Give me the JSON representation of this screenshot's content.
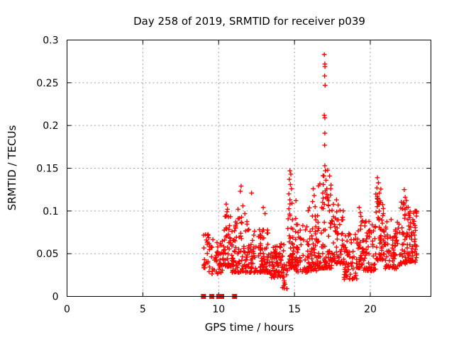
{
  "chart_data": {
    "type": "scatter",
    "title": "Day 258 of 2019, SRMTID for receiver p039",
    "xlabel": "GPS time / hours",
    "ylabel": "SRMTID / TECUs",
    "xlim": [
      0,
      24
    ],
    "ylim": [
      0,
      0.3
    ],
    "xticks": {
      "values": [
        0,
        5,
        10,
        15,
        20
      ],
      "labels": [
        "0",
        "5",
        "10",
        "15",
        "20"
      ]
    },
    "yticks": {
      "values": [
        0,
        0.05,
        0.1,
        0.15,
        0.2,
        0.25,
        0.3
      ],
      "labels": [
        "0",
        "0.05",
        "0.1",
        "0.15",
        "0.2",
        "0.25",
        "0.3"
      ]
    },
    "grid": true,
    "grid_style": "dashed",
    "grid_color": "#9e9e9e",
    "axis_color": "#000000",
    "marker": "plus",
    "marker_color": "#ff0000",
    "legend": "none",
    "seed": 20190258,
    "series": [
      {
        "name": "SRMTID",
        "color": "#ff0000",
        "clusters": [
          {
            "x0": 9.0,
            "x1": 9.35,
            "n": 22,
            "ymin": 0.033,
            "ymax": 0.076,
            "bias": 1.0
          },
          {
            "x0": 9.35,
            "x1": 10.25,
            "n": 45,
            "ymin": 0.026,
            "ymax": 0.068,
            "bias": 1.4
          },
          {
            "x0": 10.25,
            "x1": 10.9,
            "n": 60,
            "ymin": 0.035,
            "ymax": 0.105,
            "bias": 1.8
          },
          {
            "x0": 10.9,
            "x1": 11.9,
            "n": 80,
            "ymin": 0.028,
            "ymax": 0.098,
            "bias": 2.0
          },
          {
            "x0": 11.9,
            "x1": 13.35,
            "n": 110,
            "ymin": 0.028,
            "ymax": 0.08,
            "bias": 1.8
          },
          {
            "x0": 13.35,
            "x1": 14.3,
            "n": 75,
            "ymin": 0.022,
            "ymax": 0.062,
            "bias": 1.3
          },
          {
            "x0": 14.2,
            "x1": 14.55,
            "n": 15,
            "ymin": 0.008,
            "ymax": 0.04,
            "bias": 1.0
          },
          {
            "x0": 14.55,
            "x1": 15.1,
            "n": 55,
            "ymin": 0.033,
            "ymax": 0.118,
            "bias": 2.1
          },
          {
            "x0": 15.1,
            "x1": 15.85,
            "n": 45,
            "ymin": 0.028,
            "ymax": 0.085,
            "bias": 1.7
          },
          {
            "x0": 15.85,
            "x1": 16.55,
            "n": 65,
            "ymin": 0.03,
            "ymax": 0.108,
            "bias": 2.0
          },
          {
            "x0": 16.55,
            "x1": 17.45,
            "n": 80,
            "ymin": 0.033,
            "ymax": 0.15,
            "bias": 2.3
          },
          {
            "x0": 17.45,
            "x1": 18.25,
            "n": 58,
            "ymin": 0.038,
            "ymax": 0.11,
            "bias": 1.8
          },
          {
            "x0": 18.25,
            "x1": 19.15,
            "n": 62,
            "ymin": 0.02,
            "ymax": 0.075,
            "bias": 1.5
          },
          {
            "x0": 19.15,
            "x1": 19.5,
            "n": 30,
            "ymin": 0.033,
            "ymax": 0.098,
            "bias": 1.8
          },
          {
            "x0": 19.5,
            "x1": 20.35,
            "n": 62,
            "ymin": 0.03,
            "ymax": 0.088,
            "bias": 1.6
          },
          {
            "x0": 20.35,
            "x1": 20.95,
            "n": 58,
            "ymin": 0.042,
            "ymax": 0.126,
            "bias": 1.9
          },
          {
            "x0": 20.95,
            "x1": 21.95,
            "n": 70,
            "ymin": 0.032,
            "ymax": 0.092,
            "bias": 1.6
          },
          {
            "x0": 21.95,
            "x1": 22.5,
            "n": 50,
            "ymin": 0.038,
            "ymax": 0.116,
            "bias": 1.8
          },
          {
            "x0": 22.5,
            "x1": 23.1,
            "n": 58,
            "ymin": 0.04,
            "ymax": 0.102,
            "bias": 1.5
          }
        ],
        "outliers": [
          [
            16.97,
            0.283
          ],
          [
            17.0,
            0.272
          ],
          [
            17.01,
            0.269
          ],
          [
            16.99,
            0.258
          ],
          [
            17.02,
            0.247
          ],
          [
            16.97,
            0.212
          ],
          [
            17.0,
            0.209
          ],
          [
            17.0,
            0.191
          ],
          [
            16.99,
            0.177
          ],
          [
            17.0,
            0.153
          ],
          [
            17.04,
            0.147
          ],
          [
            16.94,
            0.141
          ],
          [
            17.08,
            0.136
          ],
          [
            16.9,
            0.131
          ],
          [
            17.13,
            0.126
          ],
          [
            16.86,
            0.121
          ],
          [
            17.18,
            0.114
          ],
          [
            17.24,
            0.107
          ],
          [
            16.8,
            0.104
          ],
          [
            17.3,
            0.1
          ],
          [
            14.7,
            0.147
          ],
          [
            14.76,
            0.143
          ],
          [
            14.66,
            0.137
          ],
          [
            14.73,
            0.131
          ],
          [
            14.8,
            0.126
          ],
          [
            14.63,
            0.12
          ],
          [
            14.7,
            0.113
          ],
          [
            14.84,
            0.109
          ],
          [
            16.24,
            0.126
          ],
          [
            16.3,
            0.118
          ],
          [
            16.19,
            0.111
          ],
          [
            16.36,
            0.105
          ],
          [
            11.48,
            0.129
          ],
          [
            11.43,
            0.123
          ],
          [
            11.6,
            0.106
          ],
          [
            11.28,
            0.102
          ],
          [
            12.17,
            0.121
          ],
          [
            12.94,
            0.104
          ],
          [
            13.06,
            0.097
          ],
          [
            10.5,
            0.108
          ],
          [
            10.58,
            0.102
          ],
          [
            17.77,
            0.113
          ],
          [
            17.88,
            0.107
          ],
          [
            19.27,
            0.104
          ],
          [
            19.34,
            0.098
          ],
          [
            20.47,
            0.139
          ],
          [
            20.54,
            0.133
          ],
          [
            20.44,
            0.127
          ],
          [
            20.6,
            0.121
          ],
          [
            20.5,
            0.115
          ],
          [
            20.68,
            0.11
          ],
          [
            22.24,
            0.125
          ],
          [
            22.3,
            0.116
          ],
          [
            22.18,
            0.11
          ],
          [
            22.38,
            0.104
          ],
          [
            22.95,
            0.1
          ],
          [
            23.04,
            0.094
          ]
        ]
      }
    ],
    "zero_markers": {
      "shape": "filled-square",
      "color": "#ff0000",
      "x": [
        9.0,
        9.55,
        10.0,
        10.2,
        11.05
      ]
    }
  }
}
